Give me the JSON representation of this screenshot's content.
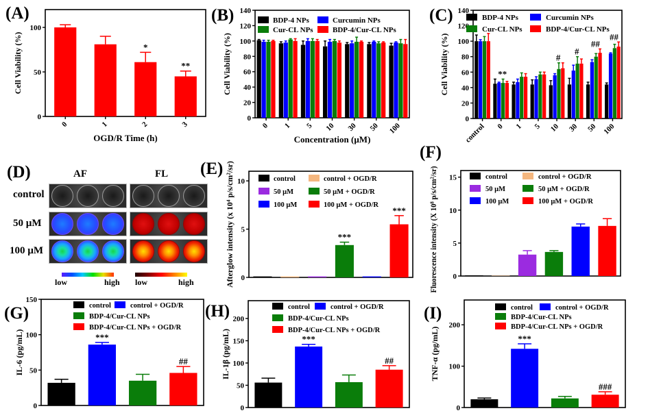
{
  "panel_d": {
    "panel_label": "(D)",
    "columns": [
      "AF",
      "FL"
    ],
    "rows": [
      "control",
      "50 µM",
      "100 µM"
    ],
    "colorbars": [
      {
        "low": "low",
        "high": "high",
        "scale": "rainbow"
      },
      {
        "low": "low",
        "high": "high",
        "scale": "hot"
      }
    ]
  },
  "chart_data": [
    {
      "panel_label": "(A)",
      "type": "bar",
      "ylabel": "Cell Viability (%)",
      "xlabel": "OGD/R Time (h)",
      "ylim": [
        0,
        120
      ],
      "yticks": [
        "0",
        "50",
        "100"
      ],
      "grid": false,
      "categories": [
        "0",
        "1",
        "2",
        "3"
      ],
      "values": [
        100,
        81,
        61,
        45
      ],
      "errors": [
        3,
        9,
        11,
        6
      ],
      "colors": [
        "#ff0000",
        "#ff0000",
        "#ff0000",
        "#ff0000"
      ],
      "annotations": [
        "",
        "",
        "*",
        "**"
      ]
    },
    {
      "panel_label": "(B)",
      "type": "bar",
      "ylabel": "Cell Viability (%)",
      "xlabel": "Concentration (µM)",
      "ylim": [
        0,
        140
      ],
      "yticks": [
        "0",
        "20",
        "40",
        "60",
        "80",
        "100",
        "120",
        "140"
      ],
      "grid": false,
      "legend_position": "top",
      "categories": [
        "0",
        "1",
        "5",
        "10",
        "30",
        "50",
        "100"
      ],
      "series": [
        {
          "name": "BDP-4 NPs",
          "color": "#000000",
          "values": [
            101,
            97,
            95,
            93,
            96,
            96,
            94
          ],
          "errors": [
            1,
            2,
            5,
            7,
            2,
            2,
            3
          ]
        },
        {
          "name": "Curcumin NPs",
          "color": "#0000ff",
          "values": [
            99,
            98,
            100,
            99,
            97,
            99,
            98
          ],
          "errors": [
            2,
            2,
            3,
            3,
            3,
            1,
            1
          ]
        },
        {
          "name": "Cur-CL NPs",
          "color": "#0a7d0a",
          "values": [
            99,
            102,
            100,
            100,
            99,
            97,
            97
          ],
          "errors": [
            2,
            1,
            3,
            2,
            6,
            2,
            5
          ]
        },
        {
          "name": "BDP-4/Cur-CL NPs",
          "color": "#ff0000",
          "values": [
            100,
            100,
            100,
            98,
            99,
            98,
            96
          ],
          "errors": [
            1,
            3,
            2,
            2,
            1,
            1,
            6
          ]
        }
      ]
    },
    {
      "panel_label": "(C)",
      "type": "bar",
      "ylabel": "Cell Viability (%)",
      "xlabel": "",
      "ylim": [
        0,
        140
      ],
      "yticks": [
        "0",
        "20",
        "40",
        "60",
        "80",
        "100",
        "120",
        "140"
      ],
      "grid": false,
      "legend_position": "top",
      "categories": [
        "control",
        "0",
        "1",
        "5",
        "10",
        "30",
        "50",
        "100"
      ],
      "series": [
        {
          "name": "BDP-4 NPs",
          "color": "#000000",
          "values": [
            100,
            45,
            44,
            44,
            43,
            44,
            44,
            44
          ],
          "errors": [
            8,
            6,
            3,
            6,
            6,
            8,
            3,
            2
          ]
        },
        {
          "name": "Curcumin NPs",
          "color": "#0000ff",
          "values": [
            100,
            46,
            47,
            51,
            56,
            62,
            73,
            84
          ],
          "errors": [
            2,
            1,
            4,
            3,
            2,
            7,
            3,
            1
          ]
        },
        {
          "name": "Cur-CL NPs",
          "color": "#0a7d0a",
          "values": [
            100,
            46,
            54,
            57,
            64,
            71,
            80,
            91
          ],
          "errors": [
            6,
            5,
            5,
            3,
            8,
            9,
            4,
            5
          ]
        },
        {
          "name": "BDP-4/Cur-CL NPs",
          "color": "#ff0000",
          "values": [
            100,
            46,
            54,
            57,
            65,
            71,
            85,
            93
          ],
          "errors": [
            10,
            2,
            4,
            3,
            7,
            6,
            5,
            6
          ]
        }
      ],
      "group_annotations": [
        "",
        "**",
        "",
        "",
        "#",
        "#",
        "##",
        "##"
      ]
    },
    {
      "panel_label": "(E)",
      "type": "bar",
      "ylabel": "Afterglow intensity  (x 10⁴ p/s/cm²/sr)",
      "xlabel": "",
      "ylim": [
        0,
        11
      ],
      "yticks": [
        "0",
        "5",
        "10"
      ],
      "grid": false,
      "legend_position": "top",
      "legend": [
        "control",
        "control + OGD/R",
        "50 µM",
        "50 µM + OGD/R",
        "100 µM",
        "100 µM + OGD/R"
      ],
      "values": [
        0.1,
        0.1,
        0.1,
        3.35,
        0.1,
        5.5
      ],
      "errors": [
        0,
        0,
        0,
        0.3,
        0,
        0.9
      ],
      "colors": [
        "#000000",
        "#f5b77f",
        "#9b2be0",
        "#0a7d0a",
        "#0000ff",
        "#ff0000"
      ],
      "annotations": [
        "",
        "",
        "",
        "***",
        "",
        "***"
      ]
    },
    {
      "panel_label": "(F)",
      "type": "bar",
      "ylabel": "Fluorescence  intensity (X 10⁸ p/s/cm²/sr)",
      "xlabel": "",
      "ylim": [
        0,
        16
      ],
      "yticks": [
        "0",
        "5",
        "10",
        "15"
      ],
      "grid": false,
      "legend_position": "top",
      "legend": [
        "control",
        "control + OGD/R",
        "50 µM",
        "50 µM + OGD/R",
        "100 µM",
        "100 µM + OGD/R"
      ],
      "values": [
        0.1,
        0.05,
        3.25,
        3.65,
        7.5,
        7.6
      ],
      "errors": [
        0,
        0,
        0.6,
        0.2,
        0.4,
        1.1
      ],
      "colors": [
        "#000000",
        "#f5b77f",
        "#9b2be0",
        "#0a7d0a",
        "#0000ff",
        "#ff0000"
      ],
      "annotations": [
        "",
        "",
        "",
        "",
        "",
        ""
      ]
    },
    {
      "panel_label": "(G)",
      "type": "bar",
      "ylabel": "IL-6 (pg/mL)",
      "xlabel": "",
      "ylim": [
        0,
        150
      ],
      "yticks": [
        "0",
        "50",
        "100",
        "150"
      ],
      "grid": false,
      "legend_position": "top",
      "legend": [
        "control",
        "control + OGD/R",
        "BDP-4/Cur-CL NPs",
        "BDP-4/Cur-CL NPs + OGD/R"
      ],
      "values": [
        32,
        86,
        35,
        46
      ],
      "errors": [
        5,
        3,
        9,
        9
      ],
      "colors": [
        "#000000",
        "#0000ff",
        "#0a7d0a",
        "#ff0000"
      ],
      "annotations": [
        "",
        "***",
        "",
        "##"
      ]
    },
    {
      "panel_label": "(H)",
      "type": "bar",
      "ylabel": "IL-1β (pg/mL)",
      "xlabel": "",
      "ylim": [
        0,
        240
      ],
      "yticks": [
        "0",
        "50",
        "100",
        "150",
        "200"
      ],
      "grid": false,
      "legend_position": "top",
      "legend": [
        "control",
        "control + OGD/R",
        "BDP-4/Cur-CL NPs",
        "BDP-4/Cur-CL NPs + OGD/R"
      ],
      "values": [
        56,
        137,
        57,
        85
      ],
      "errors": [
        10,
        5,
        16,
        9
      ],
      "colors": [
        "#000000",
        "#0000ff",
        "#0a7d0a",
        "#ff0000"
      ],
      "annotations": [
        "",
        "***",
        "",
        "##"
      ]
    },
    {
      "panel_label": "(I)",
      "type": "bar",
      "ylabel": "TNF-α (pg/mL)",
      "xlabel": "",
      "ylim": [
        0,
        260
      ],
      "yticks": [
        "0",
        "100",
        "200"
      ],
      "grid": false,
      "legend_position": "top",
      "legend": [
        "control",
        "control + OGD/R",
        "BDP-4/Cur-CL NPs",
        "BDP-4/Cur-CL NPs + OGD/R"
      ],
      "values": [
        20,
        142,
        22,
        31
      ],
      "errors": [
        3,
        12,
        5,
        7
      ],
      "colors": [
        "#000000",
        "#0000ff",
        "#0a7d0a",
        "#ff0000"
      ],
      "annotations": [
        "",
        "***",
        "",
        "###"
      ]
    }
  ]
}
